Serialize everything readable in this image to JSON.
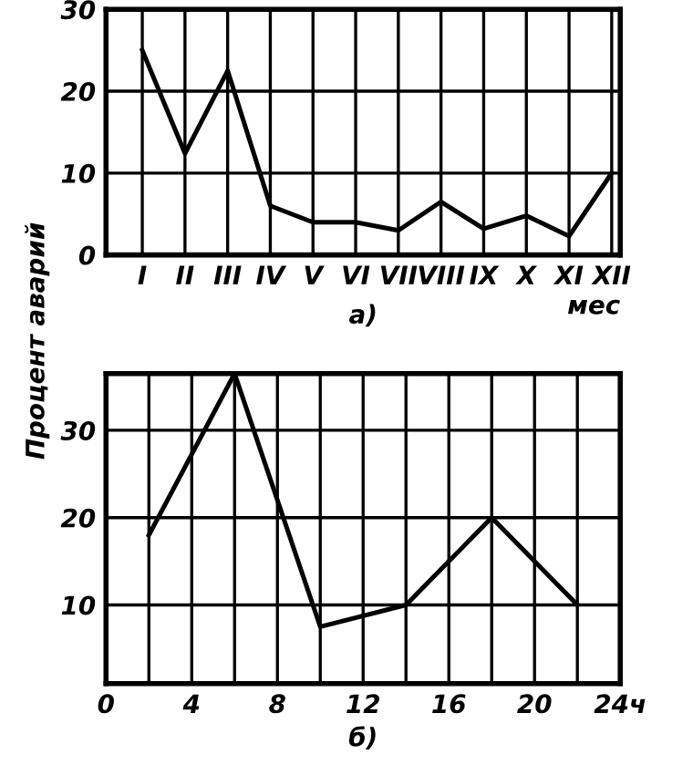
{
  "chart_data": [
    {
      "type": "line",
      "categories": [
        "I",
        "II",
        "III",
        "IV",
        "V",
        "VI",
        "VII",
        "VIII",
        "IX",
        "X",
        "XI",
        "XII"
      ],
      "series": [
        {
          "color": "#000000",
          "values": [
            25,
            12.4,
            22.5,
            6,
            4,
            4,
            3,
            6.5,
            3.2,
            4.8,
            2.3,
            10
          ]
        }
      ],
      "ylim": [
        0,
        30
      ],
      "yticks": [
        0,
        10,
        20,
        30
      ],
      "grid": true,
      "xlabel": "мес",
      "ylabel": "Процент аварий",
      "annotations": [
        "а)"
      ],
      "marker": "none",
      "line_style": "solid"
    },
    {
      "type": "line",
      "x": [
        2,
        6,
        10,
        14,
        18,
        22
      ],
      "series": [
        {
          "color": "#000000",
          "values": [
            18,
            36.5,
            7.5,
            10,
            20,
            10
          ]
        }
      ],
      "xlim": [
        0,
        24
      ],
      "xticks": [
        0,
        {
          "value": 2,
          "label": null
        },
        4,
        {
          "value": 6,
          "label": null
        },
        8,
        {
          "value": 10,
          "label": null
        },
        12,
        {
          "value": 14,
          "label": null
        },
        16,
        {
          "value": 18,
          "label": null
        },
        20,
        {
          "value": 22,
          "label": null
        },
        {
          "value": 24,
          "label": "24ч"
        }
      ],
      "ylim": [
        1,
        36.5
      ],
      "yticks": [
        10,
        20,
        30
      ],
      "grid": true,
      "annotations": [
        "б)"
      ],
      "marker": "none",
      "line_style": "solid"
    }
  ]
}
